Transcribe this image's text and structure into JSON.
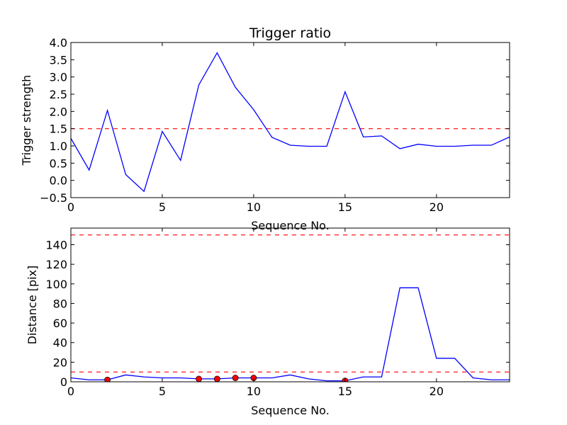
{
  "chart_data": [
    {
      "type": "line",
      "title": "Trigger ratio",
      "xlabel": "Sequence No.",
      "ylabel": "Trigger strength",
      "xlim": [
        0,
        24
      ],
      "ylim": [
        -0.5,
        4.0
      ],
      "xticks": [
        "0",
        "5",
        "10",
        "15",
        "20"
      ],
      "xtick_values": [
        0,
        5,
        10,
        15,
        20
      ],
      "yticks": [
        "−0.5",
        "0.0",
        "0.5",
        "1.0",
        "1.5",
        "2.0",
        "2.5",
        "3.0",
        "3.5",
        "4.0"
      ],
      "ytick_values": [
        -0.5,
        0.0,
        0.5,
        1.0,
        1.5,
        2.0,
        2.5,
        3.0,
        3.5,
        4.0
      ],
      "grid": false,
      "series": [
        {
          "color": "#0000ff",
          "x": [
            0,
            1,
            2,
            3,
            4,
            5,
            6,
            7,
            8,
            9,
            10,
            11,
            12,
            13,
            14,
            15,
            16,
            17,
            18,
            19,
            20,
            21,
            22,
            23,
            24
          ],
          "values": [
            1.22,
            0.3,
            2.03,
            0.17,
            -0.32,
            1.42,
            0.58,
            2.77,
            3.7,
            2.7,
            2.05,
            1.25,
            1.02,
            0.99,
            0.99,
            2.57,
            1.26,
            1.29,
            0.92,
            1.05,
            0.99,
            0.99,
            1.02,
            1.02,
            1.26
          ]
        }
      ],
      "hlines": [
        {
          "y": 1.5,
          "color": "#ff0000",
          "style": "dashed"
        }
      ]
    },
    {
      "type": "line",
      "title": "",
      "xlabel": "Sequence No.",
      "ylabel": "Distance [pix]",
      "xlim": [
        0,
        24
      ],
      "ylim": [
        0,
        157
      ],
      "xticks": [
        "0",
        "5",
        "10",
        "15",
        "20"
      ],
      "xtick_values": [
        0,
        5,
        10,
        15,
        20
      ],
      "yticks": [
        "0",
        "20",
        "40",
        "60",
        "80",
        "100",
        "120",
        "140"
      ],
      "ytick_values": [
        0,
        20,
        40,
        60,
        80,
        100,
        120,
        140
      ],
      "grid": false,
      "series": [
        {
          "color": "#0000ff",
          "x": [
            0,
            1,
            2,
            3,
            4,
            5,
            6,
            7,
            8,
            9,
            10,
            11,
            12,
            13,
            14,
            15,
            16,
            17,
            18,
            19,
            20,
            21,
            22,
            23,
            24
          ],
          "values": [
            4,
            2,
            2,
            7,
            5,
            4,
            4,
            3,
            3,
            4,
            4,
            4,
            7,
            3,
            1,
            1,
            5,
            5,
            96,
            96,
            24,
            24,
            4,
            2,
            2
          ]
        }
      ],
      "markers": {
        "color": "#ff0000",
        "x": [
          2,
          7,
          8,
          9,
          10,
          15
        ],
        "y": [
          2,
          3,
          3,
          4,
          4,
          1
        ]
      },
      "hlines": [
        {
          "y": 150,
          "color": "#ff0000",
          "style": "dashed"
        },
        {
          "y": 10,
          "color": "#ff0000",
          "style": "dashed"
        }
      ]
    }
  ]
}
